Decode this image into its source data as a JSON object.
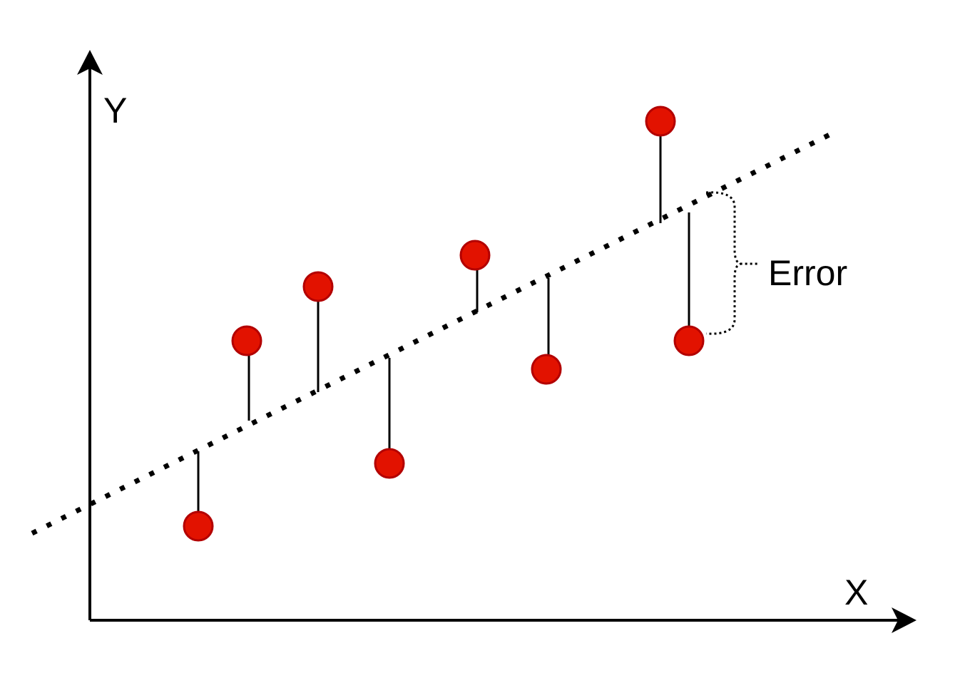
{
  "axes": {
    "y_label": "Y",
    "x_label": "X"
  },
  "annotation": "Error"
}
